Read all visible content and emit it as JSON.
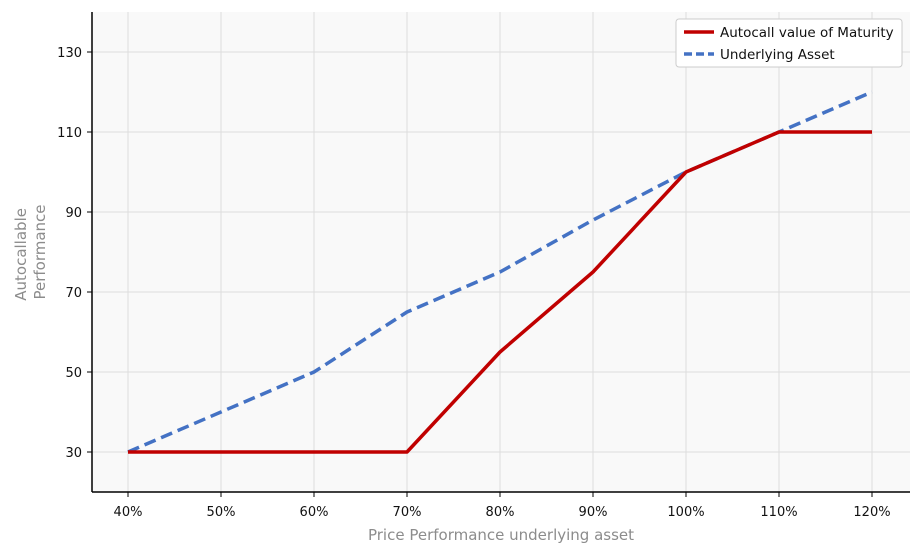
{
  "chart_data": {
    "type": "line",
    "x": [
      "40%",
      "50%",
      "60%",
      "70%",
      "80%",
      "90%",
      "100%",
      "110%",
      "120%"
    ],
    "series": [
      {
        "name": "Autocall value of Maturity",
        "values": [
          30,
          30,
          30,
          30,
          55,
          75,
          100,
          110,
          110
        ],
        "color": "#c00000",
        "style": "solid"
      },
      {
        "name": "Underlying Asset",
        "values": [
          30,
          40,
          50,
          65,
          75,
          88,
          100,
          110,
          120
        ],
        "color": "#4472c4",
        "style": "dashed"
      }
    ],
    "xlabel": "Price Performance underlying asset",
    "ylabel": [
      "Autocallable",
      "Performance"
    ],
    "ylim": [
      20,
      140
    ],
    "yticks": [
      30,
      50,
      70,
      90,
      110,
      130
    ],
    "grid": true,
    "legend_position": "top-right",
    "background_color": "#f9f9f9",
    "grid_color": "#dddddd"
  }
}
